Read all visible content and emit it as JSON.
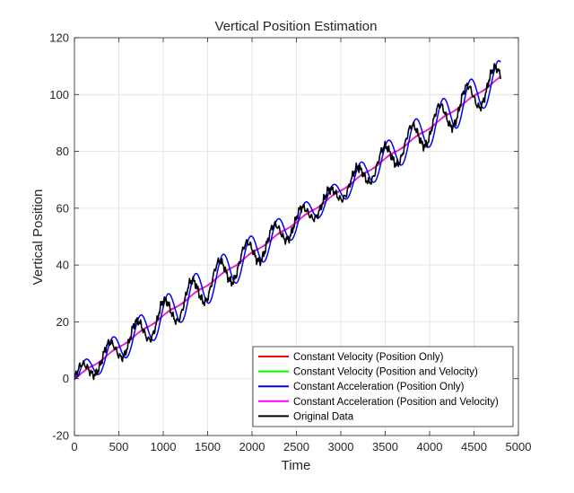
{
  "chart_data": {
    "type": "line",
    "title": "Vertical Position Estimation",
    "xlabel": "Time",
    "ylabel": "Vertical Position",
    "xlim": [
      0,
      5000
    ],
    "ylim": [
      -20,
      120
    ],
    "xticks": [
      0,
      500,
      1000,
      1500,
      2000,
      2500,
      3000,
      3500,
      4000,
      4500,
      5000
    ],
    "yticks": [
      -20,
      0,
      20,
      40,
      60,
      80,
      100,
      120
    ],
    "grid": true,
    "legend_position": "bottom-right",
    "series": [
      {
        "name": "Constant Velocity (Position Only)",
        "color": "#ff0000",
        "kind": "smooth",
        "amp": 1.2,
        "lag": 60
      },
      {
        "name": "Constant Velocity (Position and Velocity)",
        "color": "#00ff00",
        "kind": "smooth",
        "amp": 0.8,
        "lag": 40
      },
      {
        "name": "Constant Acceleration (Position Only)",
        "color": "#0000ff",
        "kind": "oscillating",
        "amp": 1.25,
        "lag": 45
      },
      {
        "name": "Constant Acceleration (Position and Velocity)",
        "color": "#ff00ff",
        "kind": "smooth",
        "amp": 0.6,
        "lag": 30
      },
      {
        "name": "Original Data",
        "color": "#000000",
        "kind": "raw",
        "amp": 1.0,
        "lag": 0
      }
    ],
    "trend": {
      "x": [
        0,
        4800
      ],
      "y": [
        0,
        106
      ]
    },
    "oscillation_period": 310,
    "oscillation_amplitude": 5,
    "x_end": 4800
  }
}
